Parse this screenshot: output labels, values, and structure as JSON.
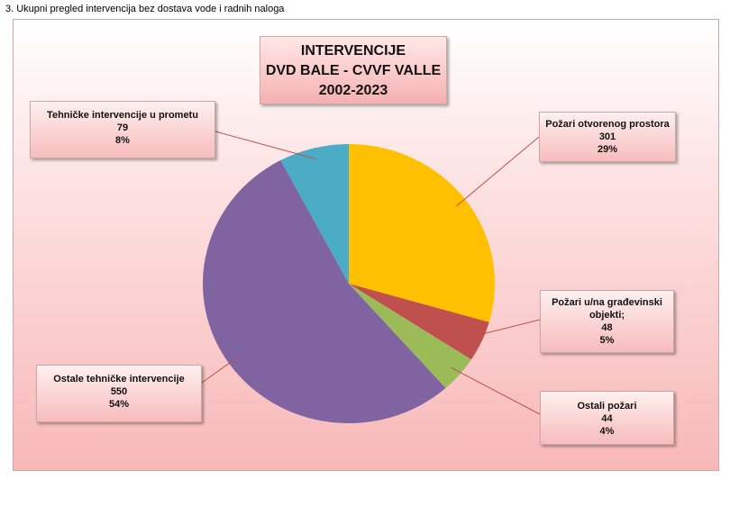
{
  "caption": "3. Ukupni pregled intervencija bez dostava vode i radnih naloga",
  "chart_data": {
    "type": "pie",
    "title_lines": [
      "INTERVENCIJE",
      "DVD BALE - CVVF VALLE",
      "2002-2023"
    ],
    "slices": [
      {
        "name": "Požari otvorenog prostora",
        "value": 301,
        "percent": "29%",
        "color": "#FFC000"
      },
      {
        "name": "Požari u/na građevinski objekti;",
        "value": 48,
        "percent": "5%",
        "color": "#C0504D"
      },
      {
        "name": "Ostali požari",
        "value": 44,
        "percent": "4%",
        "color": "#9BBB59"
      },
      {
        "name": "Ostale tehničke intervencije",
        "value": 550,
        "percent": "54%",
        "color": "#8064A2"
      },
      {
        "name": "Tehničke intervencije u prometu",
        "value": 79,
        "percent": "8%",
        "color": "#4BACC6"
      }
    ]
  }
}
